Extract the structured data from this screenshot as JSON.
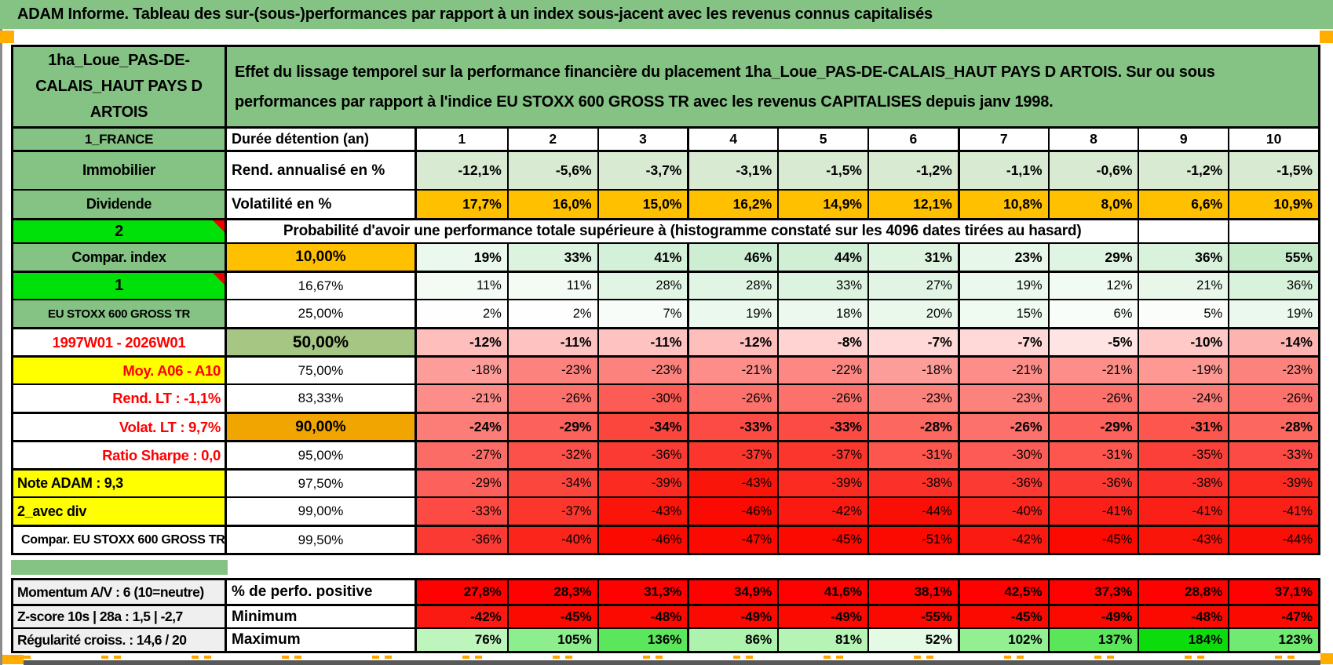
{
  "title": "ADAM Informe. Tableau des sur-(sous-)performances par rapport à un index sous-jacent avec les revenus connus capitalisés",
  "header": {
    "asset_name": "1ha_Loue_PAS-DE-CALAIS_HAUT PAYS D ARTOIS",
    "description": "Effet du lissage temporel sur la performance financière du placement 1ha_Loue_PAS-DE-CALAIS_HAUT PAYS D ARTOIS. Sur ou sous performances par rapport à l'indice EU STOXX 600 GROSS TR avec les revenus CAPITALISES depuis janv 1998."
  },
  "left": {
    "country": "1_FRANCE",
    "asset_class": "Immobilier",
    "dividend": "Dividende",
    "code2": "2",
    "compar_index": "Compar. index",
    "code1": "1",
    "index_name": "EU STOXX 600 GROSS TR",
    "period": "1997W01 - 2026W01",
    "moy": "Moy. A06 - A10",
    "rend_lt": "Rend. LT :   -1,1%",
    "volat_lt": "Volat. LT :   9,7%",
    "sharpe": "Ratio Sharpe :   0,0",
    "note_adam": "Note ADAM : 9,3",
    "avec_div": "2_avec div",
    "compar_eu": "Compar. EU STOXX 600 GROSS TR"
  },
  "columns": {
    "duration_label": "Durée détention (an)",
    "years": [
      "1",
      "2",
      "3",
      "4",
      "5",
      "6",
      "7",
      "8",
      "9",
      "10"
    ]
  },
  "perf": {
    "rend_label": "Rend. annualisé en %",
    "rend": [
      "-12,1%",
      "-5,6%",
      "-3,7%",
      "-3,1%",
      "-1,5%",
      "-1,2%",
      "-1,1%",
      "-0,6%",
      "-1,2%",
      "-1,5%"
    ],
    "volat_label": "Volatilité en %",
    "volat": [
      "17,7%",
      "16,0%",
      "15,0%",
      "16,2%",
      "14,9%",
      "12,1%",
      "10,8%",
      "8,0%",
      "6,6%",
      "10,9%"
    ]
  },
  "prob": {
    "header": "Probabilité d'avoir une performance totale supérieure à (histogramme constaté sur les 4096 dates tirées au hasard)",
    "rows": [
      {
        "pct": "10,00%",
        "values": [
          "19%",
          "33%",
          "41%",
          "46%",
          "44%",
          "31%",
          "23%",
          "29%",
          "36%",
          "55%"
        ]
      },
      {
        "pct": "16,67%",
        "values": [
          "11%",
          "11%",
          "28%",
          "28%",
          "33%",
          "27%",
          "19%",
          "12%",
          "21%",
          "36%"
        ]
      },
      {
        "pct": "25,00%",
        "values": [
          "2%",
          "2%",
          "7%",
          "19%",
          "18%",
          "20%",
          "15%",
          "6%",
          "5%",
          "19%"
        ]
      },
      {
        "pct": "50,00%",
        "values": [
          "-12%",
          "-11%",
          "-11%",
          "-12%",
          "-8%",
          "-7%",
          "-7%",
          "-5%",
          "-10%",
          "-14%"
        ]
      },
      {
        "pct": "75,00%",
        "values": [
          "-18%",
          "-23%",
          "-23%",
          "-21%",
          "-22%",
          "-18%",
          "-21%",
          "-21%",
          "-19%",
          "-23%"
        ]
      },
      {
        "pct": "83,33%",
        "values": [
          "-21%",
          "-26%",
          "-30%",
          "-26%",
          "-26%",
          "-23%",
          "-23%",
          "-26%",
          "-24%",
          "-26%"
        ]
      },
      {
        "pct": "90,00%",
        "values": [
          "-24%",
          "-29%",
          "-34%",
          "-33%",
          "-33%",
          "-28%",
          "-26%",
          "-29%",
          "-31%",
          "-28%"
        ]
      },
      {
        "pct": "95,00%",
        "values": [
          "-27%",
          "-32%",
          "-36%",
          "-37%",
          "-37%",
          "-31%",
          "-30%",
          "-31%",
          "-35%",
          "-33%"
        ]
      },
      {
        "pct": "97,50%",
        "values": [
          "-29%",
          "-34%",
          "-39%",
          "-43%",
          "-39%",
          "-38%",
          "-36%",
          "-36%",
          "-38%",
          "-39%"
        ]
      },
      {
        "pct": "99,00%",
        "values": [
          "-33%",
          "-37%",
          "-43%",
          "-46%",
          "-42%",
          "-44%",
          "-40%",
          "-41%",
          "-41%",
          "-41%"
        ]
      },
      {
        "pct": "99,50%",
        "values": [
          "-36%",
          "-40%",
          "-46%",
          "-47%",
          "-45%",
          "-51%",
          "-42%",
          "-45%",
          "-43%",
          "-44%"
        ]
      }
    ]
  },
  "footer": {
    "momentum": "Momentum A/V : 6 (10=neutre)",
    "zscore": "Z-score 10s | 28a : 1,5 | -2,7",
    "regularite": "Régularité croiss. : 14,6 / 20",
    "perfo_label": "% de perfo. positive",
    "perfo": [
      "27,8%",
      "28,3%",
      "31,3%",
      "34,9%",
      "41,6%",
      "38,1%",
      "42,5%",
      "37,3%",
      "28,8%",
      "37,1%"
    ],
    "min_label": "Minimum",
    "min": [
      "-42%",
      "-45%",
      "-48%",
      "-49%",
      "-49%",
      "-55%",
      "-45%",
      "-49%",
      "-48%",
      "-47%"
    ],
    "max_label": "Maximum",
    "max": [
      "76%",
      "105%",
      "136%",
      "86%",
      "81%",
      "52%",
      "102%",
      "137%",
      "184%",
      "123%"
    ]
  },
  "colors": {
    "header_green": "#85C385",
    "bright_green": "#00E10A",
    "orange": "#FFC000",
    "orange_dark": "#F0A500",
    "sage_green": "#A6C684",
    "yellow": "#FFFF00",
    "red_text": "#FF0000",
    "rend_row_bg": "#D8EAD2",
    "perfo_row_bg": "#FE0100",
    "corner_marker": "#FFAE00"
  }
}
